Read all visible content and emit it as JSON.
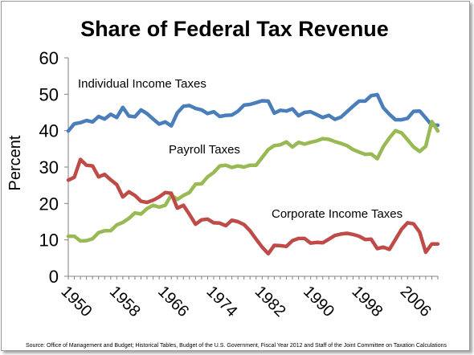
{
  "chart_data": {
    "type": "line",
    "title": "Share of Federal Tax Revenue",
    "ylabel": "Percent",
    "xlabel": "",
    "ylim": [
      0,
      60
    ],
    "yticks": [
      "0",
      "10",
      "20",
      "30",
      "40",
      "50",
      "60"
    ],
    "xlim": [
      1950,
      2011
    ],
    "xticks": [
      "1950",
      "1958",
      "1966",
      "1974",
      "1982",
      "1990",
      "1998",
      "2006"
    ],
    "grid": false,
    "legend": "none",
    "source": "Source: Office of Management and Budget; Historical Tables, Budget of the U.S. Government,  Fiscal Year 2012 and Staff of the Joint Committee on Taxation Calculations",
    "x": [
      1950,
      1951,
      1952,
      1953,
      1954,
      1955,
      1956,
      1957,
      1958,
      1959,
      1960,
      1961,
      1962,
      1963,
      1964,
      1965,
      1966,
      1967,
      1968,
      1969,
      1970,
      1971,
      1972,
      1973,
      1974,
      1975,
      1976,
      1977,
      1978,
      1979,
      1980,
      1981,
      1982,
      1983,
      1984,
      1985,
      1986,
      1987,
      1988,
      1989,
      1990,
      1991,
      1992,
      1993,
      1994,
      1995,
      1996,
      1997,
      1998,
      1999,
      2000,
      2001,
      2002,
      2003,
      2004,
      2005,
      2006,
      2007,
      2008,
      2009,
      2010,
      2011
    ],
    "series": [
      {
        "name": "Individual Income Taxes",
        "color": "#4a7ebb",
        "values": [
          39.9,
          41.9,
          42.2,
          42.8,
          42.4,
          43.9,
          43.2,
          44.5,
          43.6,
          46.4,
          44.0,
          43.8,
          45.7,
          44.7,
          43.2,
          41.8,
          42.4,
          41.3,
          44.9,
          46.7,
          46.9,
          46.1,
          45.7,
          44.7,
          45.2,
          43.9,
          44.2,
          44.3,
          45.3,
          47.0,
          47.2,
          47.7,
          48.2,
          48.1,
          44.8,
          45.6,
          45.4,
          46.0,
          44.1,
          45.0,
          45.2,
          44.4,
          43.6,
          44.2,
          43.1,
          43.7,
          45.2,
          46.7,
          48.1,
          48.1,
          49.6,
          49.9,
          46.3,
          44.5,
          43.0,
          43.0,
          43.4,
          45.3,
          45.4,
          43.5,
          41.5,
          41.5
        ]
      },
      {
        "name": "Payroll Taxes",
        "color": "#98b954",
        "values": [
          11.0,
          11.0,
          9.7,
          9.8,
          10.3,
          12.0,
          12.5,
          12.5,
          14.1,
          14.8,
          15.9,
          17.4,
          17.1,
          18.6,
          19.5,
          19.0,
          19.5,
          22.3,
          21.1,
          22.2,
          23.0,
          25.3,
          25.4,
          27.3,
          28.5,
          30.3,
          30.5,
          29.9,
          30.3,
          30.0,
          30.5,
          30.5,
          32.6,
          34.8,
          35.9,
          36.1,
          36.9,
          35.5,
          36.8,
          36.3,
          36.8,
          37.2,
          37.8,
          37.6,
          37.0,
          36.5,
          35.9,
          34.8,
          34.1,
          33.5,
          33.6,
          32.3,
          35.6,
          38.0,
          40.0,
          39.4,
          37.5,
          35.5,
          34.3,
          35.7,
          42.5,
          39.9
        ]
      },
      {
        "name": "Corporate Income Taxes",
        "color": "#be4b48",
        "values": [
          26.4,
          27.2,
          32.1,
          30.5,
          30.3,
          27.3,
          28.0,
          26.5,
          25.2,
          21.8,
          23.2,
          22.2,
          20.6,
          20.3,
          20.9,
          21.8,
          23.0,
          22.8,
          18.7,
          19.5,
          17.0,
          14.3,
          15.5,
          15.7,
          14.7,
          14.6,
          13.9,
          15.4,
          15.0,
          14.2,
          12.5,
          10.2,
          8.0,
          6.2,
          8.5,
          8.4,
          8.2,
          9.8,
          10.4,
          10.4,
          9.1,
          9.3,
          9.2,
          10.2,
          11.2,
          11.6,
          11.8,
          11.5,
          11.0,
          10.1,
          10.2,
          7.6,
          8.0,
          7.4,
          10.1,
          12.9,
          14.7,
          14.4,
          12.1,
          6.6,
          8.9,
          8.9
        ]
      }
    ],
    "annotations": [
      {
        "text": "Individual Income Taxes",
        "series": 0
      },
      {
        "text": "Payroll Taxes",
        "series": 1
      },
      {
        "text": "Corporate Income Taxes",
        "series": 2
      }
    ]
  }
}
